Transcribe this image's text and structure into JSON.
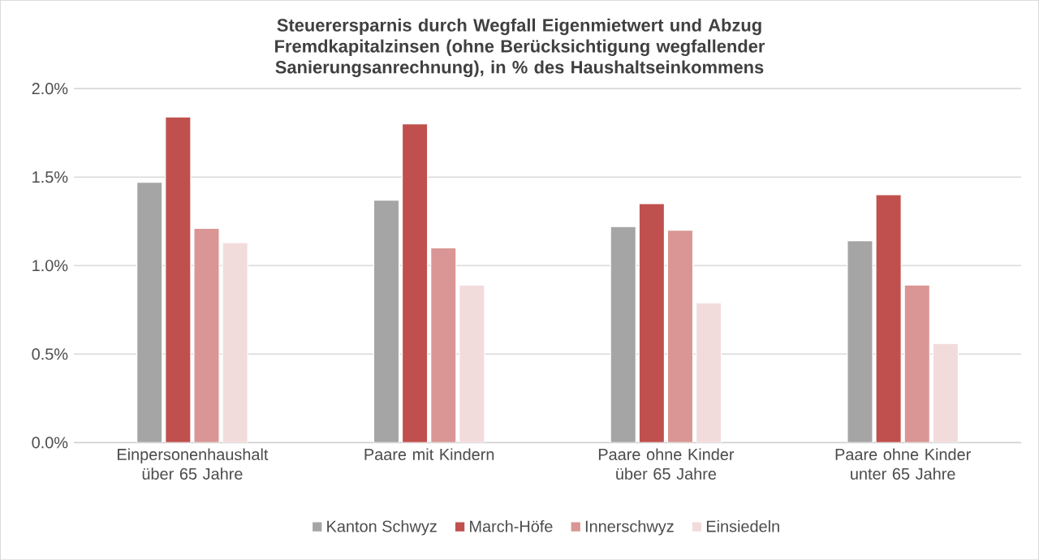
{
  "chart_data": {
    "type": "bar",
    "title": "Steuerersparnis durch Wegfall Eigenmietwert und Abzug Fremdkapitalzinsen (ohne Berücksichtigung wegfallender Sanierungsanrechnung), in % des Haushaltseinkommens",
    "categories": [
      "Einpersonenhaushalt über 65 Jahre",
      "Paare mit Kindern",
      "Paare ohne Kinder über 65 Jahre",
      "Paare ohne Kinder unter 65 Jahre"
    ],
    "series": [
      {
        "name": "Kanton Schwyz",
        "color": "#a5a5a5",
        "values": [
          1.47,
          1.37,
          1.22,
          1.14
        ]
      },
      {
        "name": "March-Höfe",
        "color": "#c0504d",
        "values": [
          1.84,
          1.8,
          1.35,
          1.4
        ]
      },
      {
        "name": "Innerschwyz",
        "color": "#d99694",
        "values": [
          1.21,
          1.1,
          1.2,
          0.89
        ]
      },
      {
        "name": "Einsiedeln",
        "color": "#f2dcdb",
        "values": [
          1.13,
          0.89,
          0.79,
          0.56
        ]
      }
    ],
    "ylim": [
      0,
      2
    ],
    "yticks": [
      {
        "value": 0,
        "label": "0.0%"
      },
      {
        "value": 0.5,
        "label": "0.5%"
      },
      {
        "value": 1,
        "label": "1.0%"
      },
      {
        "value": 1.5,
        "label": "1.5%"
      },
      {
        "value": 2,
        "label": "2.0%"
      }
    ],
    "grid": "y",
    "legend": "bottom"
  }
}
